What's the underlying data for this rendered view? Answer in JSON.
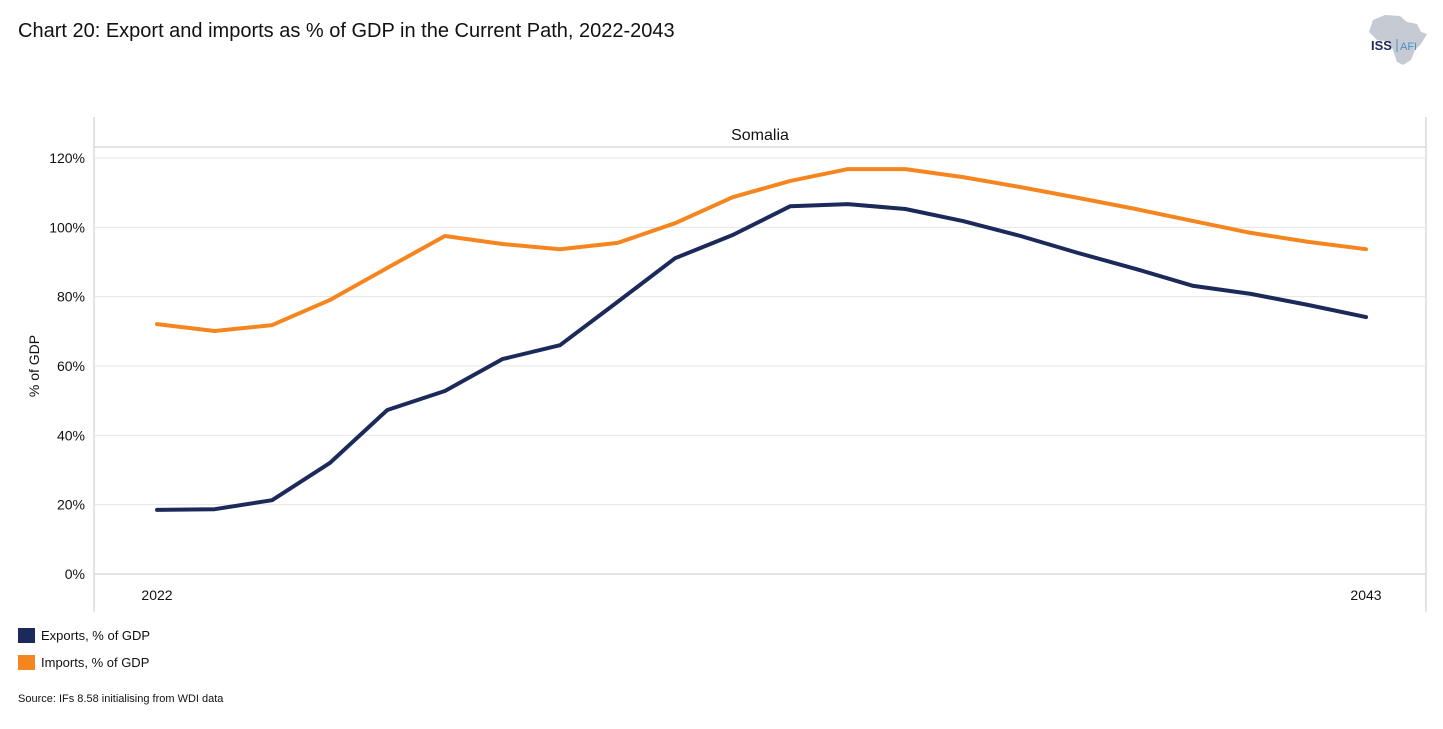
{
  "title": "Chart 20: Export and imports as % of GDP in the Current Path, 2022-2043",
  "logo": {
    "text_main": "ISS",
    "text_sub": "AFI"
  },
  "source": "Source: IFs 8.58 initialising from WDI data",
  "chart_data": {
    "type": "line",
    "title": "Chart 20: Export and imports as % of GDP in the Current Path, 2022-2043",
    "panel_title": "Somalia",
    "xlabel": "",
    "ylabel": "% of GDP",
    "x": [
      2022,
      2023,
      2024,
      2025,
      2026,
      2027,
      2028,
      2029,
      2030,
      2031,
      2032,
      2033,
      2034,
      2035,
      2036,
      2037,
      2038,
      2039,
      2040,
      2041,
      2042,
      2043
    ],
    "x_tick_labels": [
      "2022",
      "2043"
    ],
    "xlim": [
      2022,
      2043
    ],
    "ylim": [
      0,
      120
    ],
    "y_ticks": [
      0,
      20,
      40,
      60,
      80,
      100,
      120
    ],
    "y_tick_labels": [
      "0%",
      "20%",
      "40%",
      "60%",
      "80%",
      "100%",
      "120%"
    ],
    "grid": true,
    "legend_position": "bottom-left",
    "series": [
      {
        "name": "Exports, % of GDP",
        "color": "#1b2a5a",
        "values": [
          18.5,
          18.7,
          21.3,
          32.0,
          47.3,
          52.8,
          62.0,
          66.0,
          78.5,
          91.1,
          97.8,
          106.1,
          106.7,
          105.3,
          101.8,
          97.5,
          92.6,
          88.0,
          83.1,
          80.8,
          77.6,
          74.1
        ]
      },
      {
        "name": "Imports, % of GDP",
        "color": "#f5861f",
        "values": [
          72.1,
          70.1,
          71.8,
          79.0,
          88.3,
          97.5,
          95.2,
          93.7,
          95.5,
          101.2,
          108.7,
          113.4,
          116.8,
          116.8,
          114.5,
          111.6,
          108.5,
          105.3,
          101.8,
          98.4,
          95.8,
          93.7
        ]
      }
    ]
  }
}
